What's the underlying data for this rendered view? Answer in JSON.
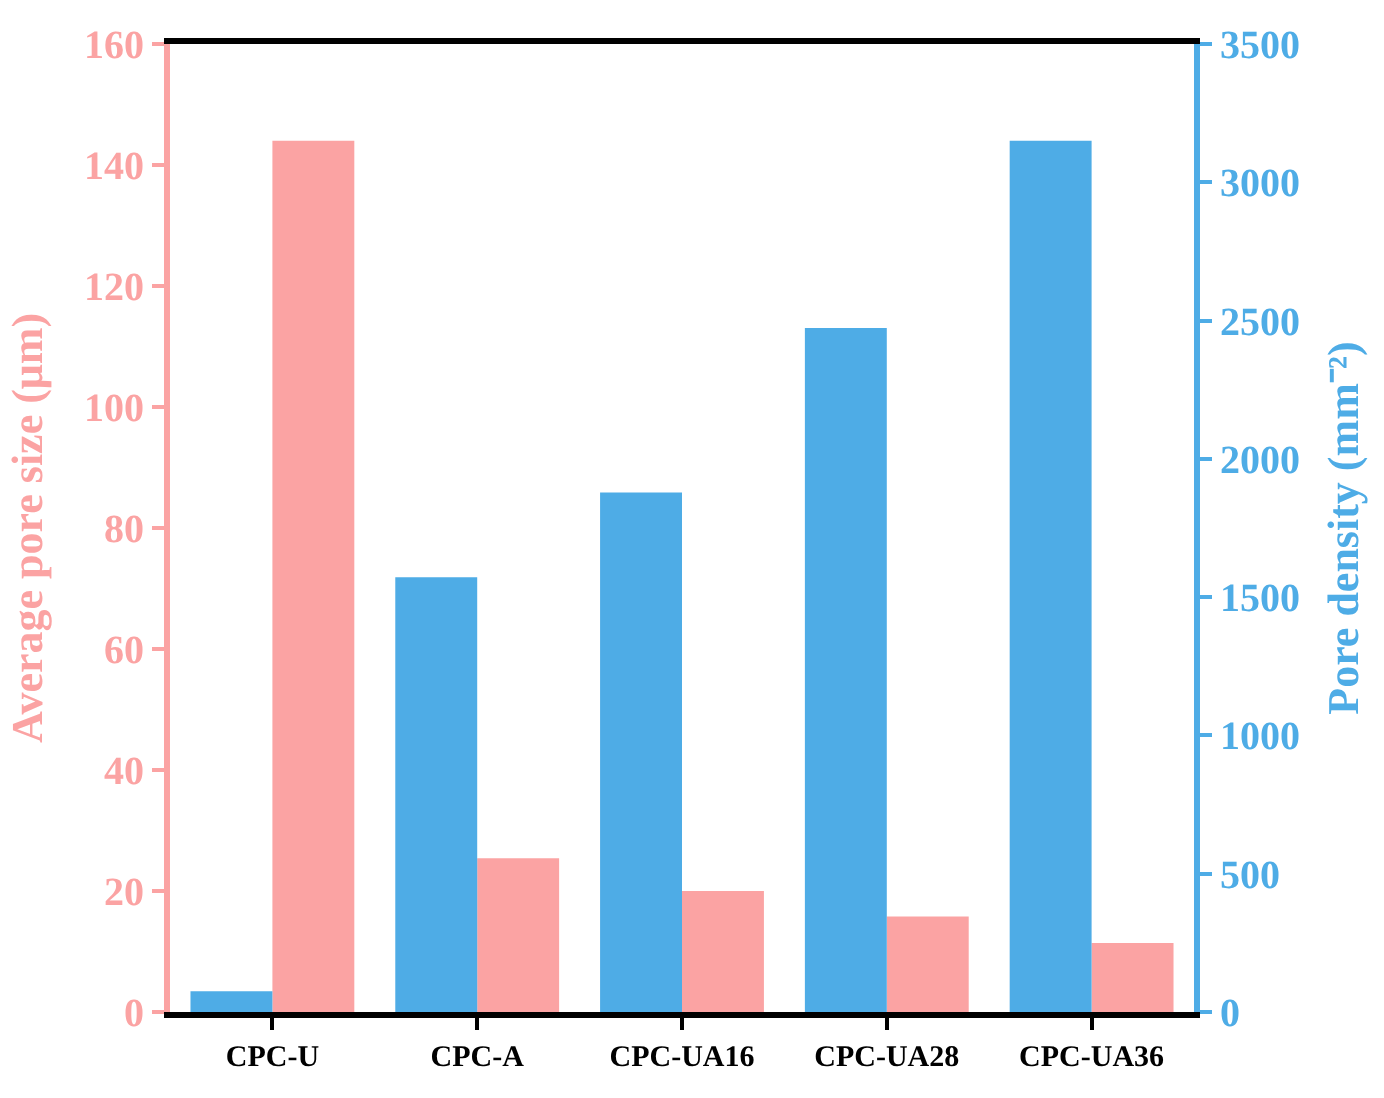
{
  "chart_data": {
    "type": "bar",
    "categories": [
      "CPC-U",
      "CPC-A",
      "CPC-UA16",
      "CPC-UA28",
      "CPC-UA36"
    ],
    "series": [
      {
        "color": "#4eace6",
        "values": [
          75,
          1572,
          1878,
          2473,
          3150
        ],
        "axis": "y2"
      },
      {
        "color": "#fba3a3",
        "values": [
          144,
          25.4,
          20,
          15.8,
          11.4
        ]
      }
    ],
    "ylabel": "Average pore size (μm)",
    "y2label": "Pore density (mm⁻²)",
    "ylim": [
      0,
      160
    ],
    "yticks": [
      0,
      20,
      40,
      60,
      80,
      100,
      120,
      140,
      160
    ],
    "y2lim": [
      0,
      3500
    ],
    "y2ticks": [
      0,
      500,
      1000,
      1500,
      2000,
      2500,
      3000,
      3500
    ],
    "legend": false
  }
}
